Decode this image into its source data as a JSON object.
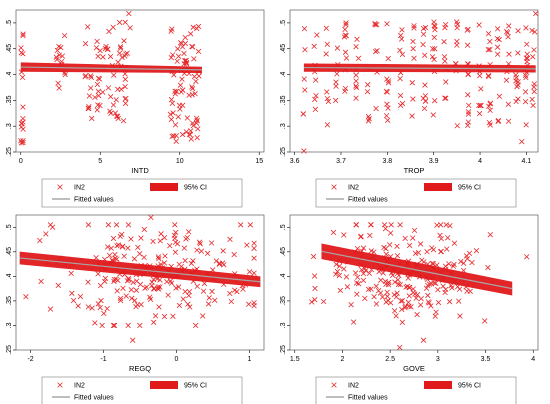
{
  "chart_data": [
    {
      "type": "scatter",
      "xlabel": "INTD",
      "ylabel": "",
      "xlim": [
        -0.3,
        15.3
      ],
      "ylim": [
        0.25,
        0.525
      ],
      "xticks": [
        0,
        5,
        10,
        15
      ],
      "yticks": [
        0.25,
        0.3,
        0.35,
        0.4,
        0.45,
        0.5
      ],
      "ytick_labels": [
        ".25",
        ".3",
        ".35",
        ".4",
        ".45",
        ".5"
      ],
      "legend": {
        "position": "bottom",
        "entries": [
          "IN2",
          "95% CI",
          "Fitted values"
        ]
      },
      "fitted": {
        "x": [
          0,
          11.4
        ],
        "y": [
          0.4145,
          0.409
        ],
        "ci_halfwidth": [
          0.009,
          0.006
        ]
      },
      "clusters": [
        {
          "x_range": [
            0,
            0.15
          ],
          "y_range": [
            0.26,
            0.49
          ],
          "n": 18
        },
        {
          "x_range": [
            2.2,
            2.8
          ],
          "y_range": [
            0.36,
            0.49
          ],
          "n": 14
        },
        {
          "x_range": [
            4.0,
            6.9
          ],
          "y_range": [
            0.31,
            0.505
          ],
          "n": 70
        },
        {
          "x_range": [
            9.4,
            11.3
          ],
          "y_range": [
            0.27,
            0.495
          ],
          "n": 80
        }
      ],
      "outliers": [
        {
          "x": 6.8,
          "y": 0.518
        }
      ]
    },
    {
      "type": "scatter",
      "xlabel": "TROP",
      "ylabel": "",
      "xlim": [
        3.59,
        4.125
      ],
      "ylim": [
        0.25,
        0.525
      ],
      "xticks": [
        3.6,
        3.7,
        3.8,
        3.9,
        4,
        4.1
      ],
      "xtick_labels": [
        "3.6",
        "3.7",
        "3.8",
        "3.9",
        "4",
        "4.1"
      ],
      "yticks": [
        0.25,
        0.3,
        0.35,
        0.4,
        0.45,
        0.5
      ],
      "ytick_labels": [
        ".25",
        ".3",
        ".35",
        ".4",
        ".45",
        ".5"
      ],
      "legend": {
        "position": "bottom",
        "entries": [
          "IN2",
          "95% CI",
          "Fitted values"
        ]
      },
      "fitted": {
        "x": [
          3.62,
          4.12
        ],
        "y": [
          0.4135,
          0.411
        ],
        "ci_halfwidth": [
          0.008,
          0.007
        ]
      },
      "cluster_x": [
        3.62,
        3.645,
        3.67,
        3.69,
        3.71,
        3.735,
        3.76,
        3.775,
        3.8,
        3.83,
        3.855,
        3.88,
        3.9,
        3.925,
        3.95,
        3.975,
        4.0,
        4.02,
        4.04,
        4.06,
        4.08,
        4.1,
        4.115
      ],
      "y_range": [
        0.27,
        0.505
      ],
      "outliers": [
        {
          "x": 3.62,
          "y": 0.252
        },
        {
          "x": 4.12,
          "y": 0.518
        },
        {
          "x": 4.09,
          "y": 0.27
        }
      ]
    },
    {
      "type": "scatter",
      "xlabel": "REGQ",
      "ylabel": "",
      "xlim": [
        -2.2,
        1.2
      ],
      "ylim": [
        0.25,
        0.525
      ],
      "xticks": [
        -2,
        -1,
        0,
        1
      ],
      "xtick_labels": [
        "-2",
        "-1",
        "0",
        "1"
      ],
      "yticks": [
        0.25,
        0.3,
        0.35,
        0.4,
        0.45,
        0.5
      ],
      "ytick_labels": [
        ".25",
        ".3",
        ".35",
        ".4",
        ".45",
        ".5"
      ],
      "legend": {
        "position": "bottom",
        "entries": [
          "IN2",
          "95% CI",
          "Fitted values"
        ]
      },
      "fitted": {
        "x": [
          -2.15,
          1.15
        ],
        "y": [
          0.4375,
          0.389
        ],
        "ci_halfwidth": [
          0.013,
          0.011
        ]
      },
      "center": {
        "x": -0.3,
        "y": 0.41
      },
      "spread": {
        "x": 0.75,
        "y": 0.05
      },
      "n": 230,
      "outliers": [
        {
          "x": -0.6,
          "y": 0.27
        },
        {
          "x": -0.35,
          "y": 0.52
        }
      ]
    },
    {
      "type": "scatter",
      "xlabel": "GOVE",
      "ylabel": "",
      "xlim": [
        1.45,
        4.05
      ],
      "ylim": [
        0.25,
        0.525
      ],
      "xticks": [
        1.5,
        2,
        2.5,
        3,
        3.5,
        4
      ],
      "xtick_labels": [
        "1.5",
        "2",
        "2.5",
        "3",
        "3.5",
        "4"
      ],
      "yticks": [
        0.25,
        0.3,
        0.35,
        0.4,
        0.45,
        0.5
      ],
      "ytick_labels": [
        ".25",
        ".3",
        ".35",
        ".4",
        ".45",
        ".5"
      ],
      "legend": {
        "position": "bottom",
        "entries": [
          "IN2",
          "95% CI",
          "Fitted values"
        ]
      },
      "fitted": {
        "x": [
          1.78,
          3.78
        ],
        "y": [
          0.451,
          0.375
        ],
        "ci_halfwidth": [
          0.016,
          0.014
        ]
      },
      "center": {
        "x": 2.65,
        "y": 0.41
      },
      "spread": {
        "x": 0.45,
        "y": 0.05
      },
      "n": 230,
      "outliers": [
        {
          "x": 2.85,
          "y": 0.27
        },
        {
          "x": 2.6,
          "y": 0.255
        },
        {
          "x": 3.55,
          "y": 0.485
        }
      ]
    }
  ],
  "colors": {
    "marker": "#e8282b",
    "ci_band": "#e0191b",
    "fit_line": "#a8a8a8",
    "axis": "#000000"
  }
}
